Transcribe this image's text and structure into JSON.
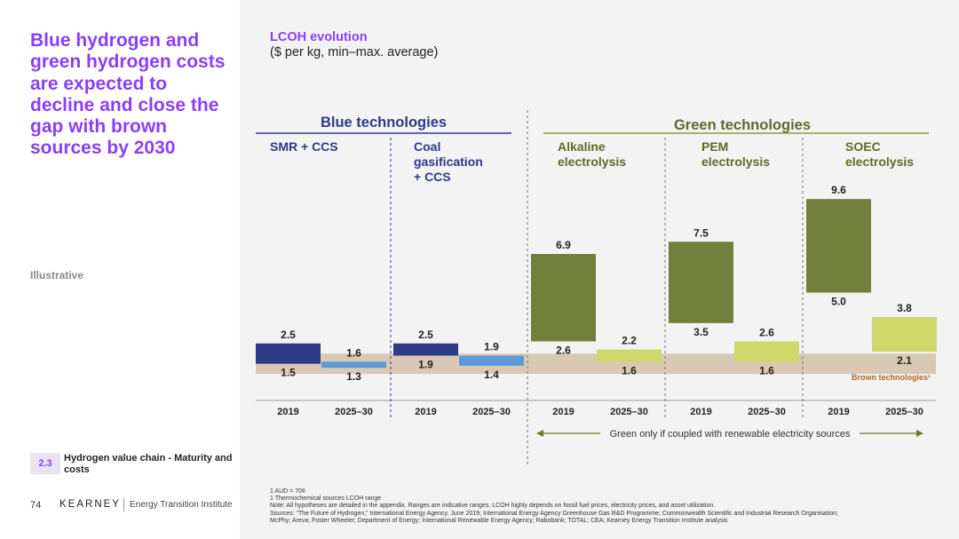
{
  "headline": "Blue hydrogen and green hydrogen costs are expected to decline and close the gap with brown sources by 2030",
  "illustrative_label": "Illustrative",
  "section": {
    "number": "2.3",
    "title": "Hydrogen value chain - Maturity and costs"
  },
  "footer": {
    "page_number": "74",
    "brand": "KEARNEY",
    "institute": "Energy Transition Institute"
  },
  "chart_title": "LCOH evolution",
  "chart_subtitle": "($ per kg, min–max. average)",
  "footnotes": [
    "1 AUD = 70¢",
    "1 Thermochemical sources LCOH range",
    "Note: All hypotheses are detailed in the appendix. Ranges are indicative ranges. LCOH highly depends on fossil fuel prices, electricity prices, and asset utilization.",
    "Sources: “The Future of Hydrogen,” International Energy Agency, June 2019; International Energy Agency Greenhouse Gas R&D Programme; Commonwealth Scientific and Industrial Research Organisation;",
    "McPhy; Areva; Foster Wheeler; Department of Energy; International Renewable Energy Agency; Rabobank; TOTAL; CEA; Kearney Energy Transition Institute analysis"
  ],
  "colors": {
    "headline": "#8a3ffc",
    "blue_2019": "#2e3a87",
    "blue_2030": "#5b9bd5",
    "green_2019": "#737f3d",
    "green_2030": "#cfd86a",
    "brown_band": "#d9c8b4",
    "blue_header": "#2e3a87",
    "green_header": "#5e6b28"
  },
  "chart_data": {
    "type": "range-bar",
    "title": "LCOH evolution",
    "subtitle": "($ per kg, min–max. average)",
    "ylim": [
      0,
      10
    ],
    "groups": [
      {
        "name": "Blue technologies",
        "technologies": [
          "SMR + CCS",
          "Coal gasification + CCS"
        ]
      },
      {
        "name": "Green technologies",
        "technologies": [
          "Alkaline electrolysis",
          "PEM electrolysis",
          "SOEC electrolysis"
        ]
      }
    ],
    "technologies": [
      {
        "name": "SMR + CCS",
        "group": "blue",
        "bars": [
          {
            "period": "2019",
            "min": 1.5,
            "max": 2.5
          },
          {
            "period": "2025–30",
            "min": 1.3,
            "max": 1.6
          }
        ]
      },
      {
        "name": "Coal gasification + CCS",
        "group": "blue",
        "bars": [
          {
            "period": "2019",
            "min": 1.9,
            "max": 2.5
          },
          {
            "period": "2025–30",
            "min": 1.4,
            "max": 1.9
          }
        ]
      },
      {
        "name": "Alkaline electrolysis",
        "group": "green",
        "bars": [
          {
            "period": "2019",
            "min": 2.6,
            "max": 6.9
          },
          {
            "period": "2025–30",
            "min": 1.6,
            "max": 2.2
          }
        ]
      },
      {
        "name": "PEM electrolysis",
        "group": "green",
        "bars": [
          {
            "period": "2019",
            "min": 3.5,
            "max": 7.5
          },
          {
            "period": "2025–30",
            "min": 1.6,
            "max": 2.6
          }
        ]
      },
      {
        "name": "SOEC electrolysis",
        "group": "green",
        "bars": [
          {
            "period": "2019",
            "min": 5.0,
            "max": 9.6
          },
          {
            "period": "2025–30",
            "min": 2.1,
            "max": 3.8
          }
        ]
      }
    ],
    "brown_band": {
      "label": "Brown technologies¹",
      "min": 1.0,
      "max": 2.0
    },
    "green_note": "Green only if coupled with renewable electricity sources"
  }
}
